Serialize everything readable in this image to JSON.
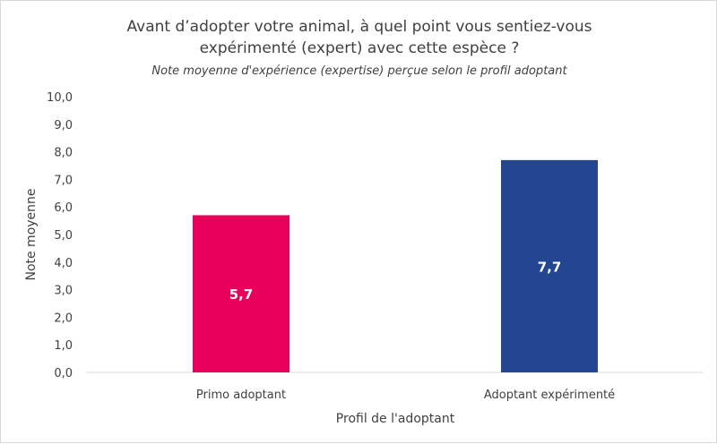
{
  "chart_data": {
    "type": "bar",
    "title": "Avant d’adopter votre animal, à quel point vous sentiez-vous expérimenté (expert) avec cette espèce ?",
    "title_lines": [
      "Avant d’adopter votre animal, à quel point vous sentiez-vous",
      "expérimenté (expert) avec cette espèce ?"
    ],
    "subtitle": "Note moyenne d'expérience (expertise) perçue selon le profil adoptant",
    "xlabel": "Profil de l'adoptant",
    "ylabel": "Note moyenne",
    "categories": [
      "Primo adoptant",
      "Adoptant expérimenté"
    ],
    "values": [
      5.7,
      7.7
    ],
    "data_labels": [
      "5,7",
      "7,7"
    ],
    "bar_colors": [
      "#e8005a",
      "#244592"
    ],
    "ylim": [
      0,
      10
    ],
    "yticks": [
      0,
      1,
      2,
      3,
      4,
      5,
      6,
      7,
      8,
      9,
      10
    ],
    "ytick_labels": [
      "0,0",
      "1,0",
      "2,0",
      "3,0",
      "4,0",
      "5,0",
      "6,0",
      "7,0",
      "8,0",
      "9,0",
      "10,0"
    ],
    "grid": false,
    "legend": "none"
  }
}
